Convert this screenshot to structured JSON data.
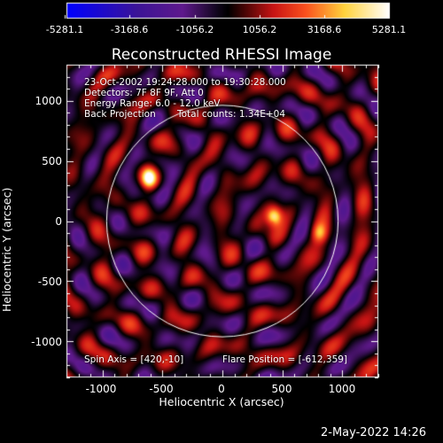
{
  "colorbar": {
    "ticks": [
      "-5281.1",
      "-3168.6",
      "-1056.2",
      "1056.2",
      "3168.6",
      "5281.1"
    ],
    "min": -5281.1,
    "max": 5281.1
  },
  "plot": {
    "title": "Reconstructed RHESSI Image",
    "info": {
      "time": "23-Oct-2002 19:24:28.000 to 19:30:28.000",
      "detectors": "Detectors: 7F 8F 9F, Att 0",
      "energy": "Energy Range: 6.0 - 12.0 keV",
      "method": "Back Projection",
      "counts": "Total counts: 1.34E+04",
      "spin_axis": "Spin Axis = [420,-10]",
      "flare_position": "Flare Position = [-612,359]"
    },
    "xaxis": {
      "label": "Heliocentric X (arcsec)",
      "range": [
        -1300,
        1300
      ],
      "ticks": [
        "-1000",
        "-500",
        "0",
        "500",
        "1000"
      ]
    },
    "yaxis": {
      "label": "Heliocentric Y (arcsec)",
      "range": [
        -1300,
        1300
      ],
      "ticks": [
        "1000",
        "500",
        "0",
        "-500",
        "-1000"
      ]
    },
    "solar_disk_radius": 965,
    "sources": [
      {
        "x": -612,
        "y": 359,
        "value": 5000
      },
      {
        "x": 430,
        "y": 30,
        "value": 4700
      },
      {
        "x": 810,
        "y": -100,
        "value": 2600
      }
    ]
  },
  "footer": {
    "timestamp": "2-May-2022 14:26"
  }
}
